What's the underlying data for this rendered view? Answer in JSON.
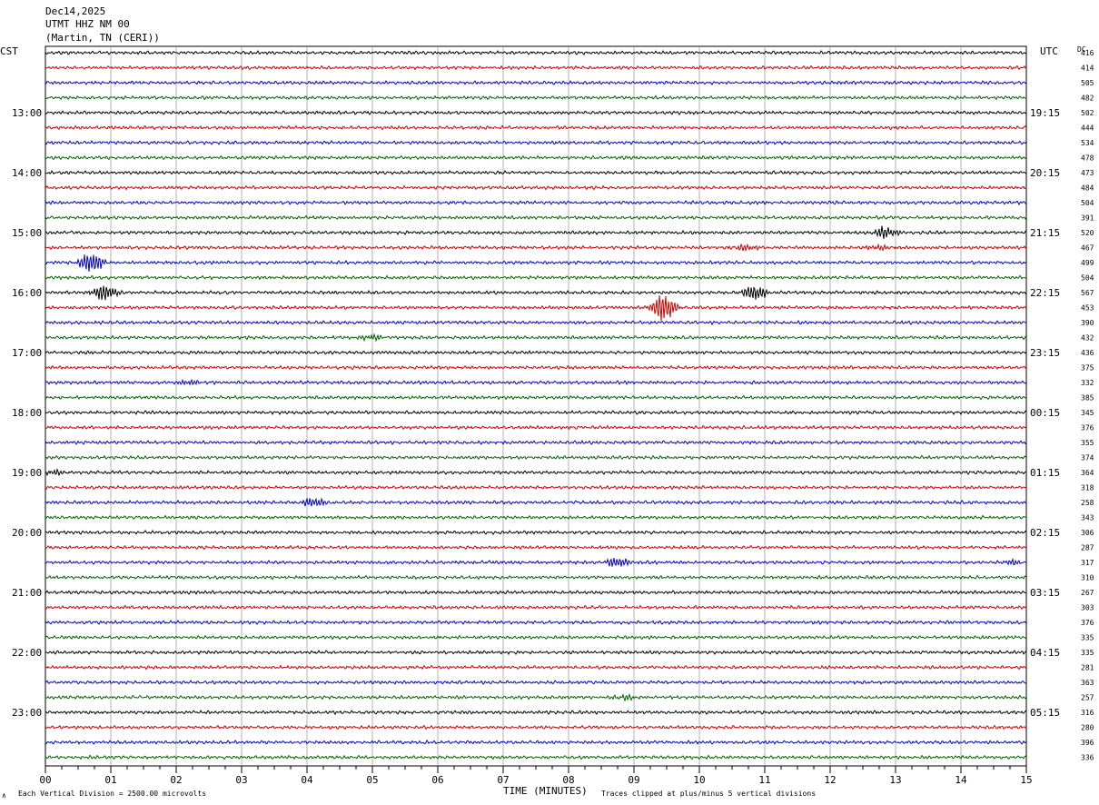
{
  "header": {
    "date": "Dec14,2025",
    "station": "UTMT HHZ NM 00",
    "location": "(Martin, TN (CERI))"
  },
  "left_tz": "CST",
  "right_tz": "UTC",
  "dc_label": "DC",
  "footer": {
    "scale": "Each Vertical Division = 2500.00 microvolts",
    "clip": "Traces clipped at plus/minus 5 vertical divisions",
    "mark": "∧"
  },
  "colors": {
    "trace_cycle": [
      "#000000",
      "#d00000",
      "#0000c8",
      "#006400"
    ],
    "grid": "#808080"
  },
  "chart_data": {
    "type": "line",
    "title": "",
    "xlabel": "TIME (MINUTES)",
    "ylabel": "",
    "xlim": [
      0,
      15
    ],
    "x_ticks": [
      "00",
      "01",
      "02",
      "03",
      "04",
      "05",
      "06",
      "07",
      "08",
      "09",
      "10",
      "11",
      "12",
      "13",
      "14",
      "15"
    ],
    "left_time_labels": [
      {
        "row": 4,
        "text": "13:00"
      },
      {
        "row": 8,
        "text": "14:00"
      },
      {
        "row": 12,
        "text": "15:00"
      },
      {
        "row": 16,
        "text": "16:00"
      },
      {
        "row": 20,
        "text": "17:00"
      },
      {
        "row": 24,
        "text": "18:00"
      },
      {
        "row": 28,
        "text": "19:00"
      },
      {
        "row": 32,
        "text": "20:00"
      },
      {
        "row": 36,
        "text": "21:00"
      },
      {
        "row": 40,
        "text": "22:00"
      },
      {
        "row": 44,
        "text": "23:00"
      }
    ],
    "right_time_labels": [
      {
        "row": 4,
        "text": "19:15"
      },
      {
        "row": 8,
        "text": "20:15"
      },
      {
        "row": 12,
        "text": "21:15"
      },
      {
        "row": 16,
        "text": "22:15"
      },
      {
        "row": 20,
        "text": "23:15"
      },
      {
        "row": 24,
        "text": "00:15"
      },
      {
        "row": 28,
        "text": "01:15"
      },
      {
        "row": 32,
        "text": "02:15"
      },
      {
        "row": 36,
        "text": "03:15"
      },
      {
        "row": 40,
        "text": "04:15"
      },
      {
        "row": 44,
        "text": "05:15"
      }
    ],
    "dc_offsets": [
      "416",
      "414",
      "505",
      "482",
      "502",
      "444",
      "534",
      "478",
      "473",
      "484",
      "504",
      "391",
      "520",
      "467",
      "499",
      "504",
      "567",
      "453",
      "390",
      "432",
      "436",
      "375",
      "332",
      "385",
      "345",
      "376",
      "355",
      "374",
      "364",
      "318",
      "258",
      "343",
      "306",
      "287",
      "317",
      "310",
      "267",
      "303",
      "376",
      "335",
      "335",
      "281",
      "363",
      "257",
      "316",
      "280",
      "396",
      "336"
    ],
    "events": [
      {
        "row": 12,
        "minute": 12.85,
        "amp": 7
      },
      {
        "row": 13,
        "minute": 10.7,
        "amp": 4
      },
      {
        "row": 13,
        "minute": 12.75,
        "amp": 3
      },
      {
        "row": 14,
        "minute": 0.7,
        "amp": 12
      },
      {
        "row": 16,
        "minute": 0.9,
        "amp": 10
      },
      {
        "row": 16,
        "minute": 10.85,
        "amp": 9
      },
      {
        "row": 17,
        "minute": 9.45,
        "amp": 16
      },
      {
        "row": 19,
        "minute": 5.0,
        "amp": 3
      },
      {
        "row": 22,
        "minute": 2.2,
        "amp": 3
      },
      {
        "row": 28,
        "minute": 0.15,
        "amp": 3
      },
      {
        "row": 30,
        "minute": 4.1,
        "amp": 6
      },
      {
        "row": 34,
        "minute": 8.75,
        "amp": 6
      },
      {
        "row": 34,
        "minute": 14.8,
        "amp": 3
      },
      {
        "row": 43,
        "minute": 8.85,
        "amp": 3
      }
    ]
  }
}
